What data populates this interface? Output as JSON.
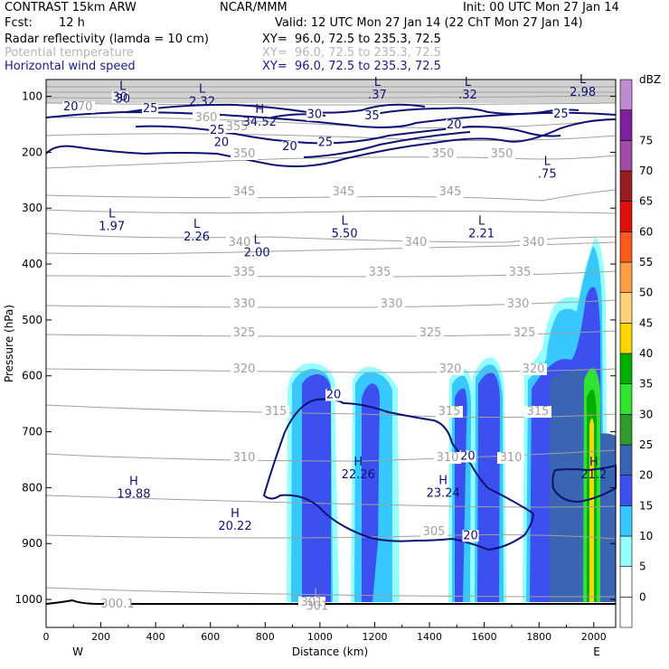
{
  "header": {
    "model": "CONTRAST 15km ARW",
    "center": "NCAR/MMM",
    "init": "Init: 00 UTC Mon 27 Jan 14",
    "fcst_label": "Fcst:",
    "fcst_value": "12 h",
    "valid": "Valid: 12 UTC Mon 27 Jan 14 (22 ChT Mon 27 Jan 14)",
    "field1": "Radar reflectivity (lamda = 10 cm)",
    "field2": "Potential temperature",
    "field3": "Horizontal wind speed",
    "xy": "XY=  96.0, 72.5 to 235.3, 72.5"
  },
  "colors": {
    "theta": "#a0a0a0",
    "wind": "#0d1273",
    "terrain": "#000000"
  },
  "chart_data": {
    "type": "cross-section",
    "xlabel": "Distance (km)",
    "ylabel": "Pressure (hPa)",
    "xlim": [
      0,
      2080
    ],
    "ylim": [
      1050,
      70
    ],
    "x_ticks": [
      0,
      200,
      400,
      600,
      800,
      1000,
      1200,
      1400,
      1600,
      1800,
      2000
    ],
    "y_ticks": [
      100,
      200,
      300,
      400,
      500,
      600,
      700,
      800,
      900,
      1000
    ],
    "west_label": "W",
    "east_label": "E",
    "colorbar": {
      "title": "dBZ",
      "labels": [
        "-",
        "0",
        "5",
        "10",
        "15",
        "20",
        "25",
        "30",
        "35",
        "40",
        "45",
        "50",
        "55",
        "60",
        "65",
        "70",
        "75"
      ],
      "colors": [
        "#ffffff",
        "#ffffff",
        "#96ffff",
        "#37c8ff",
        "#3c50f0",
        "#3a64b4",
        "#2f9a2f",
        "#31e331",
        "#00af00",
        "#ffd700",
        "#ffd27a",
        "#ff9d46",
        "#ff5a1e",
        "#e01010",
        "#9b1e1e",
        "#a04da4",
        "#7f1f9f",
        "#c08bd0"
      ]
    },
    "theta_contours": [
      {
        "label": "370",
        "p": 120
      },
      {
        "label": "360",
        "p": 135
      },
      {
        "label": "355",
        "p": 150
      },
      {
        "label": "350",
        "p": 185
      },
      {
        "label": "345",
        "p": 235
      },
      {
        "label": "340",
        "p": 350
      },
      {
        "label": "335",
        "p": 410
      },
      {
        "label": "330",
        "p": 460
      },
      {
        "label": "325",
        "p": 520
      },
      {
        "label": "320",
        "p": 590
      },
      {
        "label": "315",
        "p": 660
      },
      {
        "label": "310",
        "p": 740
      },
      {
        "label": "305",
        "p": 860
      },
      {
        "label": "301",
        "p": 1000
      },
      {
        "label": "300.1",
        "p": 1005
      }
    ],
    "wind_labels": [
      {
        "text": "20",
        "x": 90,
        "p": 125
      },
      {
        "text": "30",
        "x": 270,
        "p": 108
      },
      {
        "text": "25",
        "x": 380,
        "p": 128
      },
      {
        "text": "30",
        "x": 980,
        "p": 139
      },
      {
        "text": "35",
        "x": 1190,
        "p": 141
      },
      {
        "text": "25",
        "x": 625,
        "p": 167
      },
      {
        "text": "20",
        "x": 890,
        "p": 196
      },
      {
        "text": "25",
        "x": 1020,
        "p": 189
      },
      {
        "text": "20",
        "x": 640,
        "p": 189
      },
      {
        "text": "20",
        "x": 1490,
        "p": 157
      },
      {
        "text": "25",
        "x": 1880,
        "p": 138
      },
      {
        "text": "20",
        "x": 1050,
        "p": 640
      },
      {
        "text": "20",
        "x": 1540,
        "p": 750
      },
      {
        "text": "20",
        "x": 1550,
        "p": 892
      }
    ],
    "extrema": [
      {
        "type": "L",
        "value": "30",
        "x": 280,
        "p": 103
      },
      {
        "type": "L",
        "value": "2.32",
        "x": 570,
        "p": 108
      },
      {
        "type": "H",
        "value": "34.52",
        "x": 780,
        "p": 144
      },
      {
        "type": "L",
        "value": ".37",
        "x": 1210,
        "p": 96
      },
      {
        "type": "L",
        "value": ".32",
        "x": 1540,
        "p": 96
      },
      {
        "type": "L",
        "value": "2.98",
        "x": 1960,
        "p": 91
      },
      {
        "type": "L",
        "value": ".75",
        "x": 1830,
        "p": 237
      },
      {
        "type": "L",
        "value": "1.97",
        "x": 240,
        "p": 331
      },
      {
        "type": "L",
        "value": "2.26",
        "x": 550,
        "p": 350
      },
      {
        "type": "L",
        "value": "2.00",
        "x": 770,
        "p": 378
      },
      {
        "type": "L",
        "value": "5.50",
        "x": 1090,
        "p": 344
      },
      {
        "type": "L",
        "value": "2.21",
        "x": 1590,
        "p": 344
      },
      {
        "type": "H",
        "value": "19.88",
        "x": 320,
        "p": 810
      },
      {
        "type": "H",
        "value": "20.22",
        "x": 690,
        "p": 867
      },
      {
        "type": "H",
        "value": "22.26",
        "x": 1140,
        "p": 775
      },
      {
        "type": "H",
        "value": "23.24",
        "x": 1450,
        "p": 808
      },
      {
        "type": "H",
        "value": "21.2",
        "x": 2000,
        "p": 775
      },
      {
        "type": "L",
        "value": "301",
        "x": 990,
        "p": 1010
      }
    ]
  }
}
